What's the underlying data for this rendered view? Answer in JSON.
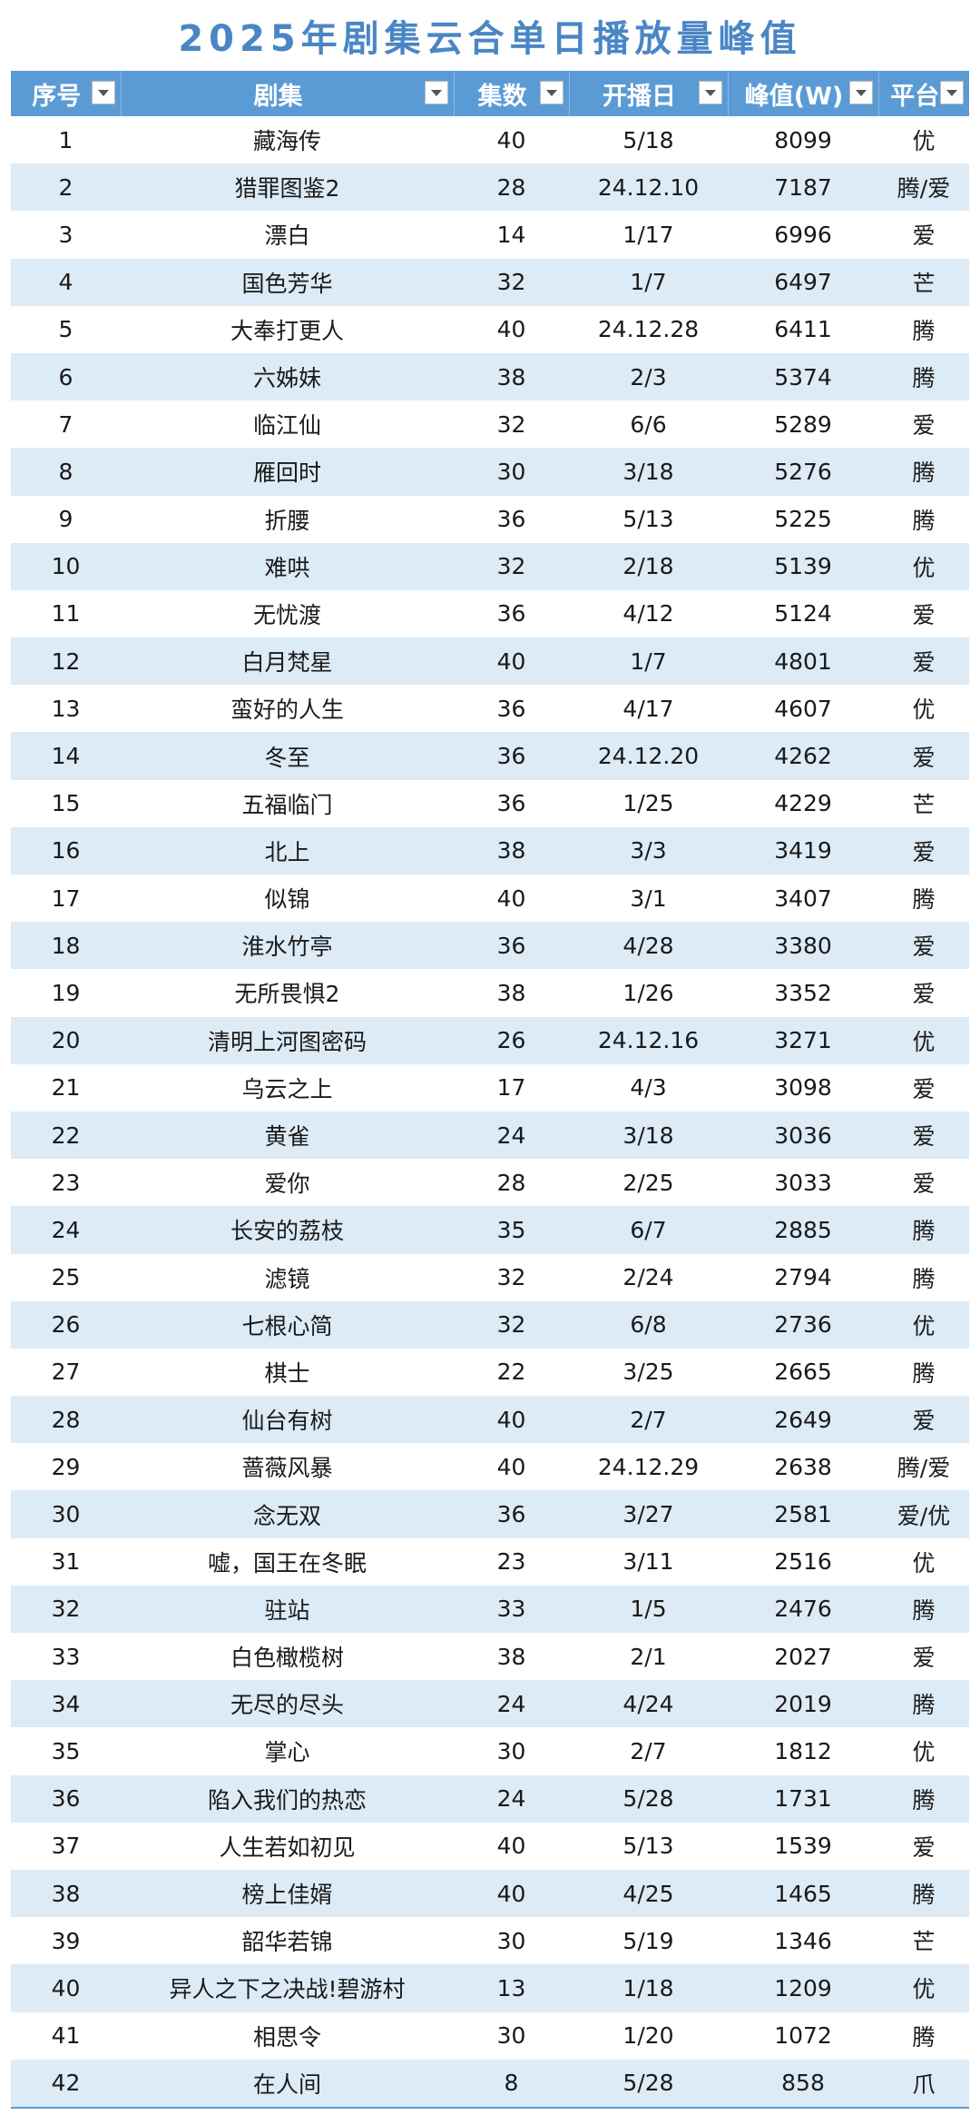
{
  "title": "2025年剧集云合单日播放量峰值",
  "headers": {
    "index": "序号",
    "drama": "剧集",
    "episodes": "集数",
    "premiere": "开播日",
    "peak": "峰值(W)",
    "platform": "平台"
  },
  "colors": {
    "title": "#4a86c5",
    "header_bg": "#5b9bd5",
    "band_row": "#ddebf7"
  },
  "rows": [
    {
      "idx": "1",
      "name": "藏海传",
      "ep": "40",
      "date": "5/18",
      "peak": "8099",
      "plat": "优"
    },
    {
      "idx": "2",
      "name": "猎罪图鉴2",
      "ep": "28",
      "date": "24.12.10",
      "peak": "7187",
      "plat": "腾/爱"
    },
    {
      "idx": "3",
      "name": "漂白",
      "ep": "14",
      "date": "1/17",
      "peak": "6996",
      "plat": "爱"
    },
    {
      "idx": "4",
      "name": "国色芳华",
      "ep": "32",
      "date": "1/7",
      "peak": "6497",
      "plat": "芒"
    },
    {
      "idx": "5",
      "name": "大奉打更人",
      "ep": "40",
      "date": "24.12.28",
      "peak": "6411",
      "plat": "腾"
    },
    {
      "idx": "6",
      "name": "六姊妹",
      "ep": "38",
      "date": "2/3",
      "peak": "5374",
      "plat": "腾"
    },
    {
      "idx": "7",
      "name": "临江仙",
      "ep": "32",
      "date": "6/6",
      "peak": "5289",
      "plat": "爱"
    },
    {
      "idx": "8",
      "name": "雁回时",
      "ep": "30",
      "date": "3/18",
      "peak": "5276",
      "plat": "腾"
    },
    {
      "idx": "9",
      "name": "折腰",
      "ep": "36",
      "date": "5/13",
      "peak": "5225",
      "plat": "腾"
    },
    {
      "idx": "10",
      "name": "难哄",
      "ep": "32",
      "date": "2/18",
      "peak": "5139",
      "plat": "优"
    },
    {
      "idx": "11",
      "name": "无忧渡",
      "ep": "36",
      "date": "4/12",
      "peak": "5124",
      "plat": "爱"
    },
    {
      "idx": "12",
      "name": "白月梵星",
      "ep": "40",
      "date": "1/7",
      "peak": "4801",
      "plat": "爱"
    },
    {
      "idx": "13",
      "name": "蛮好的人生",
      "ep": "36",
      "date": "4/17",
      "peak": "4607",
      "plat": "优"
    },
    {
      "idx": "14",
      "name": "冬至",
      "ep": "36",
      "date": "24.12.20",
      "peak": "4262",
      "plat": "爱"
    },
    {
      "idx": "15",
      "name": "五福临门",
      "ep": "36",
      "date": "1/25",
      "peak": "4229",
      "plat": "芒"
    },
    {
      "idx": "16",
      "name": "北上",
      "ep": "38",
      "date": "3/3",
      "peak": "3419",
      "plat": "爱"
    },
    {
      "idx": "17",
      "name": "似锦",
      "ep": "40",
      "date": "3/1",
      "peak": "3407",
      "plat": "腾"
    },
    {
      "idx": "18",
      "name": "淮水竹亭",
      "ep": "36",
      "date": "4/28",
      "peak": "3380",
      "plat": "爱"
    },
    {
      "idx": "19",
      "name": "无所畏惧2",
      "ep": "38",
      "date": "1/26",
      "peak": "3352",
      "plat": "爱"
    },
    {
      "idx": "20",
      "name": "清明上河图密码",
      "ep": "26",
      "date": "24.12.16",
      "peak": "3271",
      "plat": "优"
    },
    {
      "idx": "21",
      "name": "乌云之上",
      "ep": "17",
      "date": "4/3",
      "peak": "3098",
      "plat": "爱"
    },
    {
      "idx": "22",
      "name": "黄雀",
      "ep": "24",
      "date": "3/18",
      "peak": "3036",
      "plat": "爱"
    },
    {
      "idx": "23",
      "name": "爱你",
      "ep": "28",
      "date": "2/25",
      "peak": "3033",
      "plat": "爱"
    },
    {
      "idx": "24",
      "name": "长安的荔枝",
      "ep": "35",
      "date": "6/7",
      "peak": "2885",
      "plat": "腾"
    },
    {
      "idx": "25",
      "name": "滤镜",
      "ep": "32",
      "date": "2/24",
      "peak": "2794",
      "plat": "腾"
    },
    {
      "idx": "26",
      "name": "七根心简",
      "ep": "32",
      "date": "6/8",
      "peak": "2736",
      "plat": "优"
    },
    {
      "idx": "27",
      "name": "棋士",
      "ep": "22",
      "date": "3/25",
      "peak": "2665",
      "plat": "腾"
    },
    {
      "idx": "28",
      "name": "仙台有树",
      "ep": "40",
      "date": "2/7",
      "peak": "2649",
      "plat": "爱"
    },
    {
      "idx": "29",
      "name": "蔷薇风暴",
      "ep": "40",
      "date": "24.12.29",
      "peak": "2638",
      "plat": "腾/爱"
    },
    {
      "idx": "30",
      "name": "念无双",
      "ep": "36",
      "date": "3/27",
      "peak": "2581",
      "plat": "爱/优"
    },
    {
      "idx": "31",
      "name": "嘘，国王在冬眠",
      "ep": "23",
      "date": "3/11",
      "peak": "2516",
      "plat": "优"
    },
    {
      "idx": "32",
      "name": "驻站",
      "ep": "33",
      "date": "1/5",
      "peak": "2476",
      "plat": "腾"
    },
    {
      "idx": "33",
      "name": "白色橄榄树",
      "ep": "38",
      "date": "2/1",
      "peak": "2027",
      "plat": "爱"
    },
    {
      "idx": "34",
      "name": "无尽的尽头",
      "ep": "24",
      "date": "4/24",
      "peak": "2019",
      "plat": "腾"
    },
    {
      "idx": "35",
      "name": "掌心",
      "ep": "30",
      "date": "2/7",
      "peak": "1812",
      "plat": "优"
    },
    {
      "idx": "36",
      "name": "陷入我们的热恋",
      "ep": "24",
      "date": "5/28",
      "peak": "1731",
      "plat": "腾"
    },
    {
      "idx": "37",
      "name": "人生若如初见",
      "ep": "40",
      "date": "5/13",
      "peak": "1539",
      "plat": "爱"
    },
    {
      "idx": "38",
      "name": "榜上佳婿",
      "ep": "40",
      "date": "4/25",
      "peak": "1465",
      "plat": "腾"
    },
    {
      "idx": "39",
      "name": "韶华若锦",
      "ep": "30",
      "date": "5/19",
      "peak": "1346",
      "plat": "芒"
    },
    {
      "idx": "40",
      "name": "异人之下之决战!碧游村",
      "ep": "13",
      "date": "1/18",
      "peak": "1209",
      "plat": "优"
    },
    {
      "idx": "41",
      "name": "相思令",
      "ep": "30",
      "date": "1/20",
      "peak": "1072",
      "plat": "腾"
    },
    {
      "idx": "42",
      "name": "在人间",
      "ep": "8",
      "date": "5/28",
      "peak": "858",
      "plat": "爪"
    }
  ]
}
